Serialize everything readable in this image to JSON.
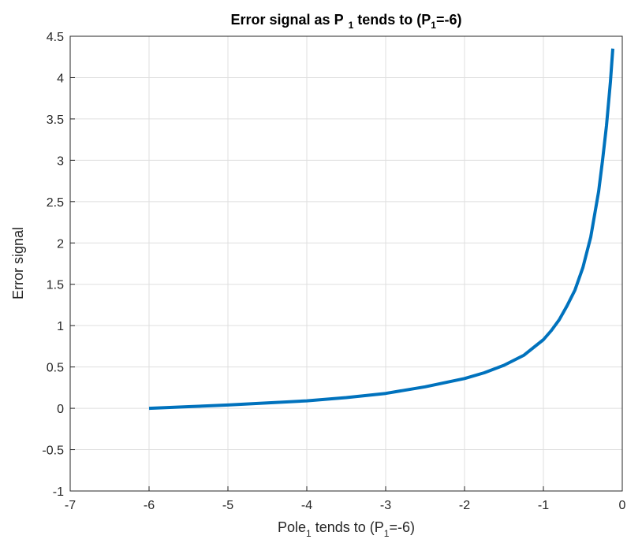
{
  "chart_data": {
    "type": "line",
    "title": {
      "prefix": "Error signal as P",
      "sub": "1",
      "mid": " tends to (P",
      "sub2": "1",
      "suffix": "=-6)"
    },
    "xlabel": {
      "prefix": "Pole",
      "sub": "1",
      "mid": " tends to (P",
      "sub2": "1",
      "suffix": "=-6)"
    },
    "ylabel": "Error signal",
    "xlim": [
      -7,
      0
    ],
    "ylim": [
      -1,
      4.5
    ],
    "xticks": [
      -7,
      -6,
      -5,
      -4,
      -3,
      -2,
      -1,
      0
    ],
    "xtick_labels": [
      "-7",
      "-6",
      "-5",
      "-4",
      "-3",
      "-2",
      "-1",
      "0"
    ],
    "yticks": [
      -1,
      -0.5,
      0,
      0.5,
      1,
      1.5,
      2,
      2.5,
      3,
      3.5,
      4,
      4.5
    ],
    "ytick_labels": [
      "-1",
      "-0.5",
      "0",
      "0.5",
      "1",
      "1.5",
      "2",
      "2.5",
      "3",
      "3.5",
      "4",
      "4.5"
    ],
    "grid": true,
    "series": [
      {
        "color": "#0072BD",
        "x": [
          -6,
          -5.5,
          -5,
          -4.5,
          -4,
          -3.5,
          -3,
          -2.5,
          -2,
          -1.75,
          -1.5,
          -1.25,
          -1,
          -0.9,
          -0.8,
          -0.7,
          -0.6,
          -0.5,
          -0.4,
          -0.3,
          -0.25,
          -0.2,
          -0.15,
          -0.12
        ],
        "y": [
          0,
          0.02,
          0.04,
          0.065,
          0.09,
          0.13,
          0.18,
          0.26,
          0.36,
          0.43,
          0.52,
          0.64,
          0.83,
          0.94,
          1.07,
          1.24,
          1.43,
          1.7,
          2.07,
          2.62,
          3.0,
          3.42,
          3.95,
          4.35
        ]
      }
    ]
  }
}
